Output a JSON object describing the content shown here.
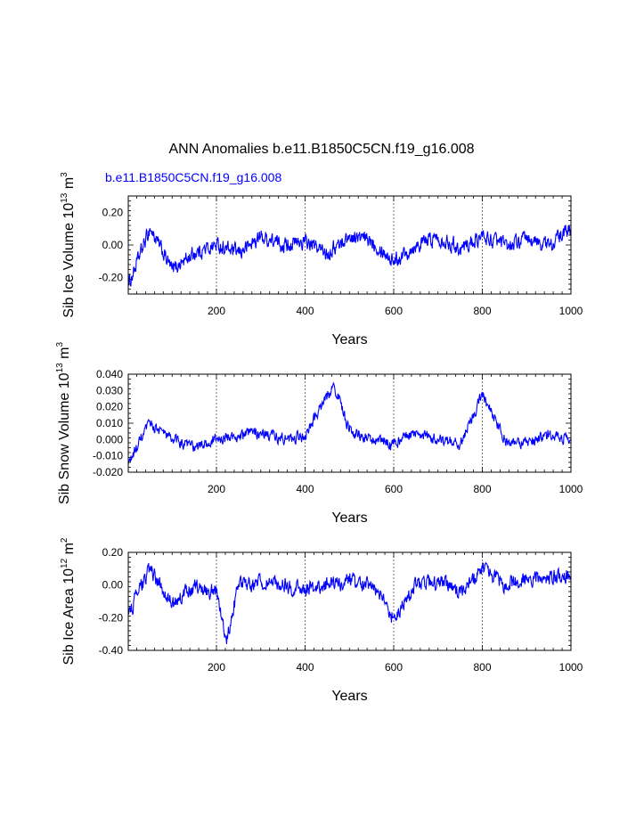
{
  "title": "ANN Anomalies b.e11.B1850C5CN.f19_g16.008",
  "case_label": "b.e11.B1850C5CN.f19_g16.008",
  "colors": {
    "series": "#0000ff",
    "axes": "#000000",
    "grid": "#555555"
  },
  "chart_data": [
    {
      "type": "line",
      "ylabel_base": "Sib Ice Volume 10",
      "ylabel_exp1": "13",
      "ylabel_unit": " m",
      "ylabel_exp2": "3",
      "xlabel": "Years",
      "xlim": [
        1,
        1000
      ],
      "ylim": [
        -0.3,
        0.3
      ],
      "x_ticks": [
        200,
        400,
        600,
        800,
        1000
      ],
      "x_tick_labels": [
        "200",
        "400",
        "600",
        "800",
        "1000"
      ],
      "y_ticks": [
        -0.2,
        0.0,
        0.2
      ],
      "y_tick_labels": [
        "-0.20",
        "0.00",
        "0.20"
      ],
      "vertical_dashed_gridlines_at": [
        200,
        400,
        600,
        800
      ],
      "series": [
        {
          "name": "b.e11.B1850C5CN.f19_g16.008",
          "x": [
            1,
            50,
            100,
            150,
            200,
            250,
            300,
            350,
            400,
            450,
            500,
            550,
            600,
            650,
            700,
            750,
            800,
            850,
            900,
            950,
            1000
          ],
          "values": [
            -0.25,
            0.1,
            -0.15,
            -0.05,
            0.0,
            -0.05,
            0.05,
            0.0,
            0.02,
            -0.05,
            0.05,
            0.03,
            -0.1,
            0.0,
            0.05,
            -0.02,
            0.05,
            0.0,
            0.03,
            0.0,
            0.1
          ]
        }
      ]
    },
    {
      "type": "line",
      "ylabel_base": "Sib Snow Volume 10",
      "ylabel_exp1": "13",
      "ylabel_unit": " m",
      "ylabel_exp2": "3",
      "xlabel": "Years",
      "xlim": [
        1,
        1000
      ],
      "ylim": [
        -0.02,
        0.04
      ],
      "x_ticks": [
        200,
        400,
        600,
        800,
        1000
      ],
      "x_tick_labels": [
        "200",
        "400",
        "600",
        "800",
        "1000"
      ],
      "y_ticks": [
        -0.02,
        -0.01,
        0.0,
        0.01,
        0.02,
        0.03,
        0.04
      ],
      "y_tick_labels": [
        "-0.020",
        "-0.010",
        "0.000",
        "0.010",
        "0.020",
        "0.030",
        "0.040"
      ],
      "vertical_dashed_gridlines_at": [
        200,
        400,
        600,
        800
      ],
      "series": [
        {
          "name": "b.e11.B1850C5CN.f19_g16.008",
          "x": [
            1,
            50,
            100,
            150,
            200,
            250,
            300,
            350,
            400,
            465,
            500,
            550,
            600,
            650,
            700,
            750,
            800,
            850,
            900,
            950,
            1000
          ],
          "values": [
            -0.015,
            0.01,
            0.0,
            -0.005,
            0.0,
            0.002,
            0.005,
            0.0,
            0.002,
            0.034,
            0.005,
            0.0,
            -0.003,
            0.005,
            0.0,
            -0.003,
            0.028,
            0.0,
            -0.002,
            0.003,
            0.0
          ]
        }
      ]
    },
    {
      "type": "line",
      "ylabel_base": "Sib Ice Area 10",
      "ylabel_exp1": "12",
      "ylabel_unit": " m",
      "ylabel_exp2": "2",
      "xlabel": "Years",
      "xlim": [
        1,
        1000
      ],
      "ylim": [
        -0.4,
        0.2
      ],
      "x_ticks": [
        200,
        400,
        600,
        800,
        1000
      ],
      "x_tick_labels": [
        "200",
        "400",
        "600",
        "800",
        "1000"
      ],
      "y_ticks": [
        -0.4,
        -0.2,
        0.0,
        0.2
      ],
      "y_tick_labels": [
        "-0.40",
        "-0.20",
        "0.00",
        "0.20"
      ],
      "vertical_dashed_gridlines_at": [
        200,
        400,
        600,
        800
      ],
      "series": [
        {
          "name": "b.e11.B1850C5CN.f19_g16.008",
          "x": [
            1,
            50,
            100,
            150,
            200,
            225,
            250,
            300,
            350,
            400,
            450,
            500,
            550,
            600,
            650,
            700,
            750,
            800,
            850,
            900,
            950,
            1000
          ],
          "values": [
            -0.18,
            0.1,
            -0.12,
            0.0,
            -0.05,
            -0.33,
            0.0,
            0.02,
            0.0,
            -0.03,
            0.0,
            0.02,
            0.0,
            -0.2,
            0.0,
            0.02,
            -0.05,
            0.1,
            0.0,
            0.03,
            0.05,
            0.05
          ]
        }
      ]
    }
  ]
}
